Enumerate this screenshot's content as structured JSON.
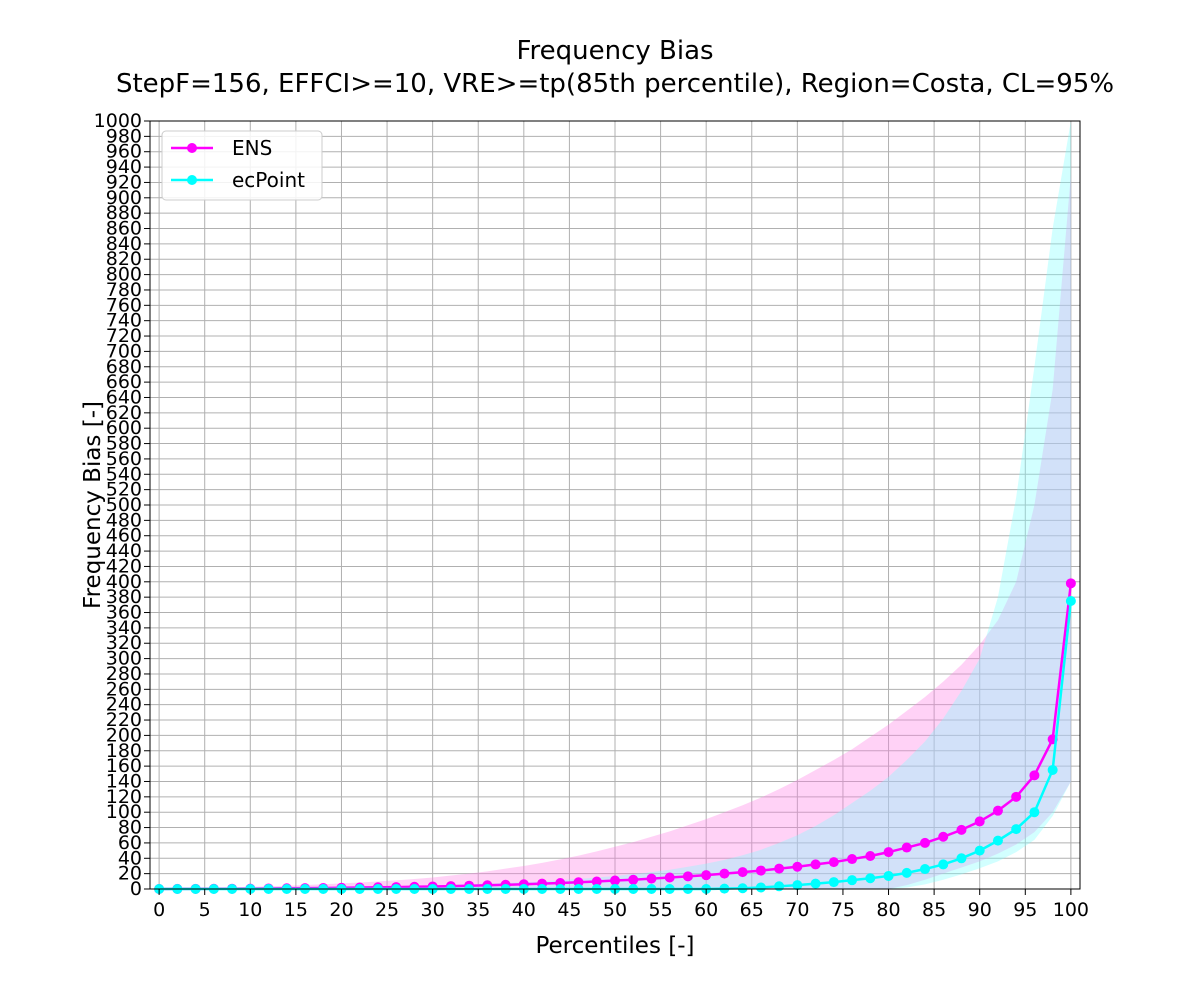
{
  "chart_data": {
    "type": "line",
    "title": "Frequency Bias",
    "subtitle": "StepF=156, EFFCI>=10, VRE>=tp(85th percentile), Region=Costa, CL=95%",
    "xlabel": "Percentiles [-]",
    "ylabel": "Frequency Bias [-]",
    "xlim": [
      -1,
      101
    ],
    "ylim": [
      0,
      1000
    ],
    "x_ticks": [
      0,
      5,
      10,
      15,
      20,
      25,
      30,
      35,
      40,
      45,
      50,
      55,
      60,
      65,
      70,
      75,
      80,
      85,
      90,
      95,
      100
    ],
    "y_ticks": [
      0,
      20,
      40,
      60,
      80,
      100,
      120,
      140,
      160,
      180,
      200,
      220,
      240,
      260,
      280,
      300,
      320,
      340,
      360,
      380,
      400,
      420,
      440,
      460,
      480,
      500,
      520,
      540,
      560,
      580,
      600,
      620,
      640,
      660,
      680,
      700,
      720,
      740,
      760,
      780,
      800,
      820,
      840,
      860,
      880,
      900,
      920,
      940,
      960,
      980,
      1000
    ],
    "visible_y_tick_label": "1000",
    "grid": true,
    "legend_position": "top-left",
    "x": [
      0,
      2,
      4,
      6,
      8,
      10,
      12,
      14,
      16,
      18,
      20,
      22,
      24,
      26,
      28,
      30,
      32,
      34,
      36,
      38,
      40,
      42,
      44,
      46,
      48,
      50,
      52,
      54,
      56,
      58,
      60,
      62,
      64,
      66,
      68,
      70,
      72,
      74,
      76,
      78,
      80,
      82,
      84,
      86,
      88,
      90,
      92,
      94,
      96,
      98,
      100
    ],
    "series": [
      {
        "name": "ENS",
        "color": "#ff00ff",
        "values": [
          0,
          0.1,
          0.2,
          0.3,
          0.4,
          0.5,
          0.7,
          0.9,
          1.1,
          1.3,
          1.6,
          1.9,
          2.2,
          2.5,
          2.9,
          3.3,
          3.8,
          4.3,
          4.9,
          5.5,
          6.2,
          7,
          7.8,
          8.8,
          9.8,
          11,
          12,
          13.5,
          15,
          16.5,
          18,
          20,
          22,
          24,
          26.5,
          29,
          32,
          35,
          39,
          43,
          48,
          54,
          60,
          68,
          77,
          88,
          102,
          120,
          148,
          195,
          398
        ],
        "ci_lower": [
          0,
          0,
          0,
          0,
          0,
          0,
          0,
          0,
          0,
          0,
          0,
          0,
          0,
          0,
          0,
          0,
          0,
          0,
          0,
          0,
          0,
          0,
          0,
          0,
          0,
          0,
          0,
          0,
          0,
          0,
          0,
          0,
          0,
          0,
          0,
          0,
          0,
          0,
          0,
          0,
          0,
          5,
          12,
          20,
          28,
          36,
          46,
          58,
          74,
          100,
          140
        ],
        "ci_upper": [
          0.5,
          0.8,
          1.2,
          1.7,
          2.2,
          2.8,
          3.5,
          4.3,
          5.2,
          6.2,
          7.3,
          8.5,
          9.8,
          11.3,
          13,
          15,
          17.5,
          20,
          23,
          26.5,
          30,
          34,
          38.5,
          43.5,
          49,
          55,
          61,
          68,
          75,
          83,
          91,
          100,
          109,
          119,
          130,
          142,
          155,
          168,
          182,
          198,
          214,
          232,
          250,
          270,
          292,
          318,
          350,
          400,
          500,
          650,
          930
        ]
      },
      {
        "name": "ecPoint",
        "color": "#00ffff",
        "values": [
          0,
          0,
          0,
          0,
          0,
          0,
          0,
          0,
          0,
          0,
          0,
          0,
          0,
          0,
          0,
          0,
          0,
          0,
          0,
          0,
          0,
          0,
          0,
          0,
          0,
          0,
          0,
          0,
          0,
          0,
          0,
          0.5,
          1,
          2,
          3.5,
          5,
          7,
          9,
          11.5,
          14,
          17,
          21,
          26,
          32,
          40,
          50,
          63,
          78,
          100,
          155,
          375
        ],
        "ci_lower": [
          0,
          0,
          0,
          0,
          0,
          0,
          0,
          0,
          0,
          0,
          0,
          0,
          0,
          0,
          0,
          0,
          0,
          0,
          0,
          0,
          0,
          0,
          0,
          0,
          0,
          0,
          0,
          0,
          0,
          0,
          0,
          0,
          0,
          0,
          0,
          0,
          0,
          0,
          0,
          0,
          0,
          2,
          6,
          12,
          19,
          27,
          36,
          48,
          64,
          95,
          140
        ],
        "ci_upper": [
          0.2,
          0.3,
          0.4,
          0.5,
          0.6,
          0.8,
          1,
          1.2,
          1.5,
          1.8,
          2.1,
          2.5,
          3,
          3.5,
          4,
          4.7,
          5.4,
          6.2,
          7,
          8,
          9,
          10,
          11.5,
          13,
          15,
          17,
          19.5,
          22,
          25,
          29,
          33,
          38,
          44,
          51,
          60,
          70,
          82,
          96,
          112,
          128,
          146,
          168,
          192,
          222,
          258,
          300,
          380,
          510,
          680,
          860,
          1000
        ]
      }
    ]
  }
}
